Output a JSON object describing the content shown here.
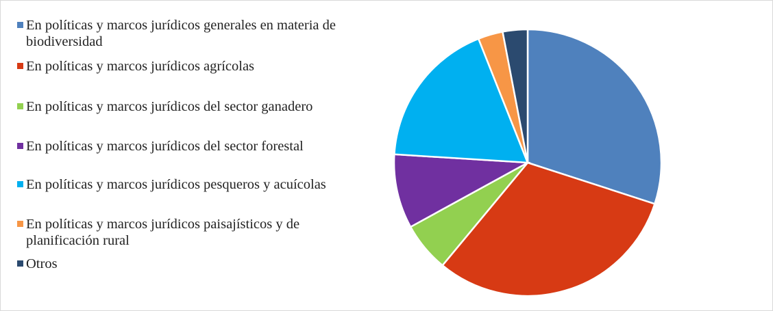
{
  "chart_data": {
    "type": "pie",
    "categories": [
      "En políticas y marcos jurídicos generales en materia de biodiversidad",
      "En políticas y marcos jurídicos agrícolas",
      "En políticas y marcos jurídicos del sector ganadero",
      "En políticas y marcos jurídicos del sector forestal",
      "En políticas y marcos jurídicos pesqueros y acuícolas",
      "En políticas y marcos jurídicos paisajísticos y de planificación rural",
      "Otros"
    ],
    "values": [
      30,
      31,
      6,
      9,
      18,
      3,
      3
    ],
    "colors": [
      "#4f81bd",
      "#d73a14",
      "#92d050",
      "#7030a0",
      "#00b0f0",
      "#f79646",
      "#2b4a6f"
    ],
    "legend": "left"
  }
}
